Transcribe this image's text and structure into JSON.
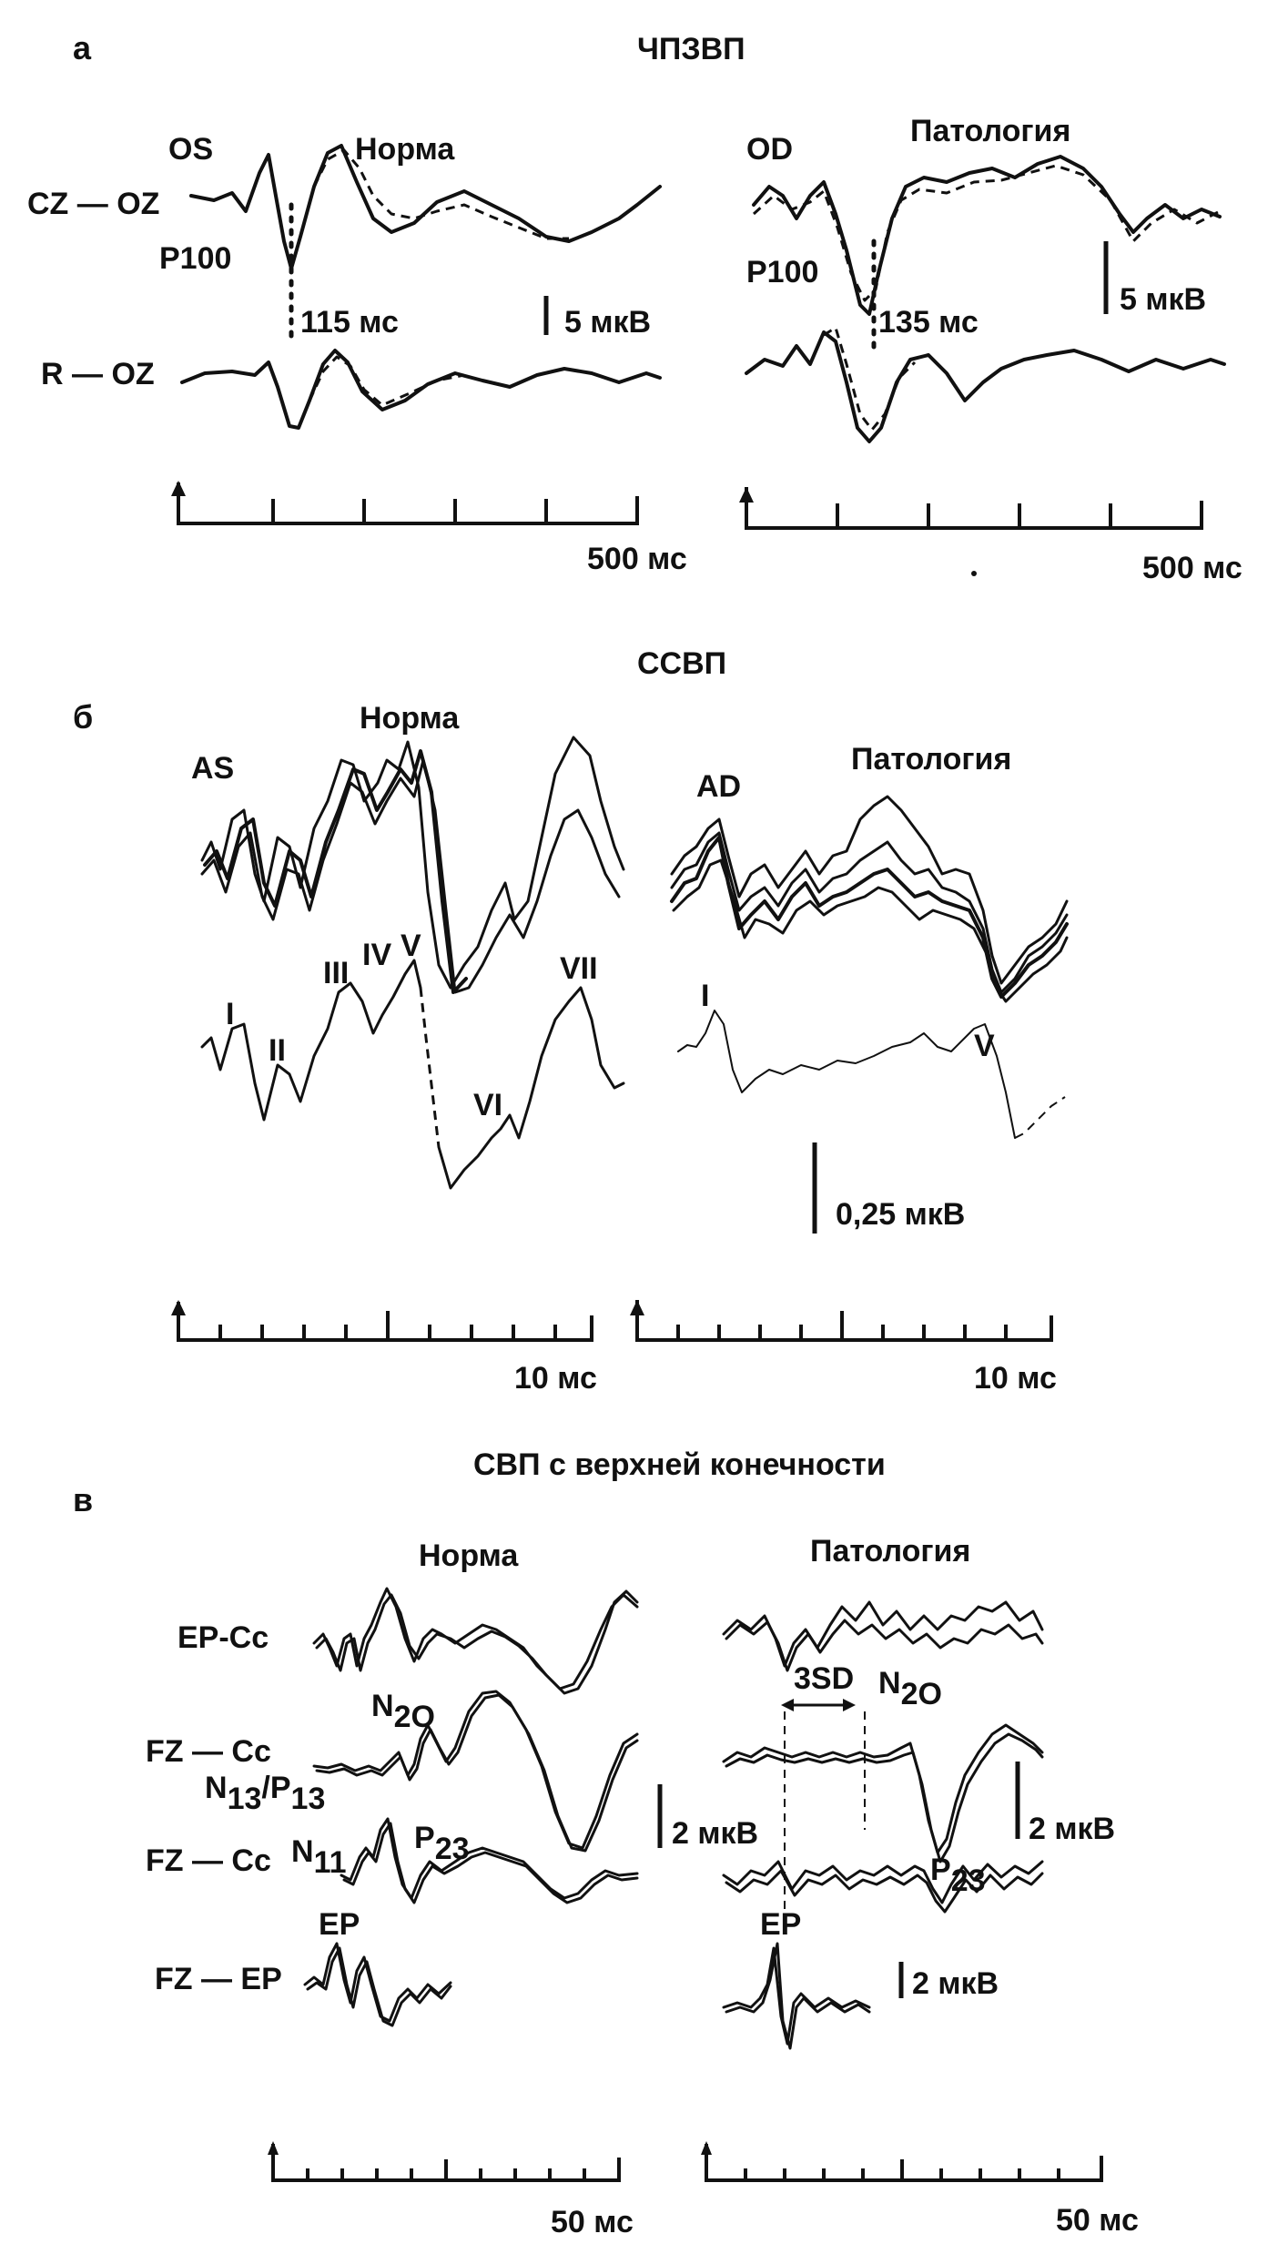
{
  "panel_a": {
    "letter": "а",
    "title": "ЧПЗВП",
    "left": {
      "label_os": "OS",
      "label_norm": "Норма",
      "ch1": "CZ — OZ",
      "ch2": "R — OZ",
      "peak": "P100",
      "latency": "115 мс",
      "scale": "5 мкВ",
      "time": "500 мс"
    },
    "right": {
      "label_od": "OD",
      "label_path": "Патология",
      "peak": "P100",
      "latency": "135 мс",
      "scale": "5 мкВ",
      "time": "500 мс"
    }
  },
  "panel_b": {
    "letter": "б",
    "title": "ССВП",
    "left": {
      "label_as": "AS",
      "label_norm": "Норма",
      "waves": [
        "I",
        "II",
        "III",
        "IV",
        "V",
        "VI",
        "VII"
      ],
      "time": "10 мс"
    },
    "right": {
      "label_ad": "AD",
      "label_path": "Патология",
      "waves": [
        "I",
        "V"
      ],
      "scale": "0,25 мкВ",
      "time": "10 мс"
    }
  },
  "panel_c": {
    "letter": "в",
    "title": "СВП с верхней конечности",
    "left": {
      "label_norm": "Норма",
      "ch1": "EP-Cc",
      "ch2": "FZ — Cc",
      "ch3": "FZ — Cc",
      "ch4": "FZ — EP",
      "n20_base": "N",
      "n20_sub": "2O",
      "n13_base": "N",
      "n13_sub": "13",
      "p13_base": "P",
      "p13_sub": "13",
      "slash": "/",
      "n11_base": "N",
      "n11_sub": "11",
      "p23_base": "P",
      "p23_sub": "23",
      "ep": "EP",
      "scale": "2 мкВ",
      "time": "50 мс"
    },
    "right": {
      "label_path": "Патология",
      "sd": "3SD",
      "n20_base": "N",
      "n20_sub": "2O",
      "p23_base": "P",
      "p23_sub": "23",
      "ep": "EP",
      "scale1": "2 мкВ",
      "scale2": "2 мкВ",
      "time": "50 мс"
    }
  }
}
